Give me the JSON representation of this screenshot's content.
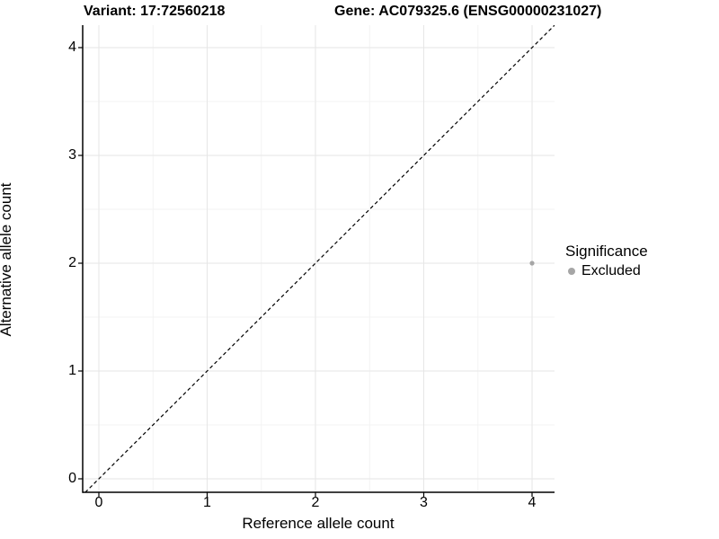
{
  "titles": {
    "variant": "Variant: 17:72560218",
    "gene": "Gene: AC079325.6 (ENSG00000231027)"
  },
  "chart_data": {
    "type": "scatter",
    "title_left": "Variant: 17:72560218",
    "title_right": "Gene: AC079325.6 (ENSG00000231027)",
    "xlabel": "Reference allele count",
    "ylabel": "Alternative allele count",
    "x_ticks": [
      0,
      1,
      2,
      3,
      4
    ],
    "y_ticks": [
      0,
      1,
      2,
      3,
      4
    ],
    "x_minor_ticks": [
      0.5,
      1.5,
      2.5,
      3.5
    ],
    "y_minor_ticks": [
      0.5,
      1.5,
      2.5,
      3.5
    ],
    "xlim": [
      -0.15,
      4.21
    ],
    "ylim": [
      -0.12,
      4.17
    ],
    "grid": "major+minor",
    "reference_line": {
      "kind": "abline",
      "slope": 1,
      "intercept": 0,
      "style": "dashed",
      "color": "#000000"
    },
    "series": [
      {
        "name": "Excluded",
        "color": "#a6a6a6",
        "points": [
          {
            "x": 4,
            "y": 2
          }
        ]
      }
    ],
    "legend": {
      "title": "Significance",
      "position": "right",
      "items": [
        {
          "label": "Excluded",
          "color": "#a6a6a6"
        }
      ]
    }
  },
  "style_colors": {
    "grid_major": "#e6e6e6",
    "grid_minor": "#f3f3f3",
    "axis_line": "#000000",
    "point": "#a6a6a6"
  }
}
